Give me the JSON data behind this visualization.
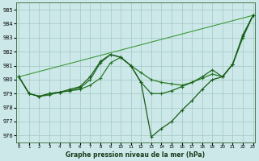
{
  "title": "Graphe pression niveau de la mer (hPa)",
  "bg_color": "#cce8e8",
  "grid_color": "#aacccc",
  "colors": [
    "#1a5c1a",
    "#2a7a2a",
    "#2a7a2a",
    "#1a5c1a"
  ],
  "xlim": [
    -0.3,
    23.2
  ],
  "ylim": [
    975.5,
    985.5
  ],
  "yticks": [
    976,
    977,
    978,
    979,
    980,
    981,
    982,
    983,
    984,
    985
  ],
  "xticks": [
    0,
    1,
    2,
    3,
    4,
    5,
    6,
    7,
    8,
    9,
    10,
    11,
    12,
    13,
    14,
    15,
    16,
    17,
    18,
    19,
    20,
    21,
    22,
    23
  ],
  "line1_x": [
    0,
    1,
    2,
    3,
    4,
    5,
    6,
    7,
    8,
    9,
    10,
    11,
    12,
    13,
    14,
    15,
    16,
    17,
    18,
    19,
    20,
    21,
    22,
    23
  ],
  "line1_y": [
    980.2,
    979.0,
    978.8,
    978.9,
    979.1,
    979.2,
    979.3,
    979.6,
    980.1,
    981.2,
    981.6,
    981.0,
    980.5,
    980.0,
    979.8,
    979.7,
    979.6,
    979.8,
    980.1,
    980.4,
    980.2,
    981.1,
    983.0,
    984.6
  ],
  "line2_x": [
    0,
    1,
    2,
    3,
    4,
    5,
    6,
    7,
    8,
    9,
    10,
    11,
    12,
    13,
    14,
    15,
    16,
    17,
    18,
    19,
    20,
    21,
    22,
    23
  ],
  "line2_y": [
    980.2,
    979.0,
    978.8,
    979.0,
    979.1,
    979.2,
    979.4,
    980.0,
    981.2,
    981.8,
    981.6,
    981.0,
    979.8,
    979.0,
    979.0,
    979.2,
    979.5,
    979.8,
    980.2,
    980.7,
    980.2,
    981.1,
    983.1,
    984.6
  ],
  "line3_x": [
    0,
    1,
    2,
    3,
    4,
    5,
    6,
    7,
    8,
    9,
    10,
    11,
    12,
    13,
    14,
    15,
    16,
    17,
    18,
    19,
    20,
    21,
    22,
    23
  ],
  "line3_y": [
    980.2,
    979.0,
    978.8,
    979.0,
    979.1,
    979.3,
    979.5,
    980.2,
    981.3,
    981.8,
    981.6,
    981.0,
    979.8,
    975.9,
    976.5,
    977.0,
    977.8,
    978.5,
    979.3,
    980.0,
    980.2,
    981.1,
    983.2,
    984.6
  ],
  "line4_x": [
    0,
    23
  ],
  "line4_y": [
    980.2,
    984.6
  ]
}
